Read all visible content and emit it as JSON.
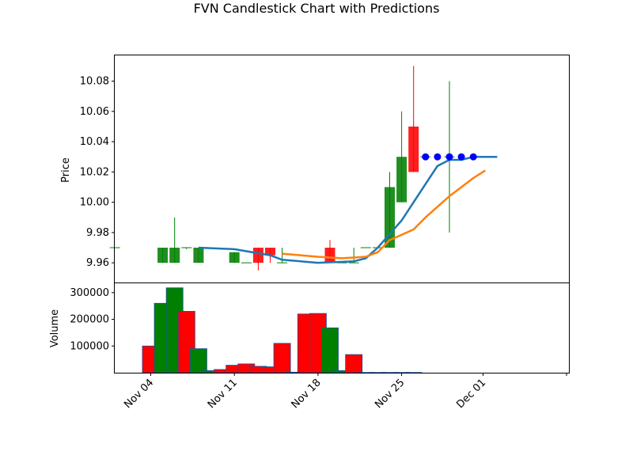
{
  "chart_data": {
    "type": "candlestick",
    "title": "FVN Candlestick Chart with Predictions",
    "price_panel": {
      "ylabel": "Price",
      "ylim": [
        9.947,
        10.097
      ],
      "yticks": [
        "9.96",
        "9.98",
        "10.00",
        "10.02",
        "10.04",
        "10.06",
        "10.08"
      ],
      "candles": [
        {
          "date": "2024-11-01",
          "open": 9.97,
          "high": 9.97,
          "low": 9.97,
          "close": 9.97
        },
        {
          "date": "2024-11-05",
          "open": 9.96,
          "high": 9.97,
          "low": 9.96,
          "close": 9.97
        },
        {
          "date": "2024-11-06",
          "open": 9.96,
          "high": 9.99,
          "low": 9.96,
          "close": 9.97
        },
        {
          "date": "2024-11-07",
          "open": 9.97,
          "high": 9.97,
          "low": 9.969,
          "close": 9.97
        },
        {
          "date": "2024-11-08",
          "open": 9.96,
          "high": 9.97,
          "low": 9.96,
          "close": 9.97
        },
        {
          "date": "2024-11-11",
          "open": 9.96,
          "high": 9.967,
          "low": 9.96,
          "close": 9.967
        },
        {
          "date": "2024-11-12",
          "open": 9.96,
          "high": 9.96,
          "low": 9.96,
          "close": 9.96
        },
        {
          "date": "2024-11-13",
          "open": 9.97,
          "high": 9.97,
          "low": 9.955,
          "close": 9.96
        },
        {
          "date": "2024-11-14",
          "open": 9.97,
          "high": 9.97,
          "low": 9.96,
          "close": 9.965
        },
        {
          "date": "2024-11-15",
          "open": 9.96,
          "high": 9.97,
          "low": 9.96,
          "close": 9.96
        },
        {
          "date": "2024-11-18",
          "open": 9.96,
          "high": 9.96,
          "low": 9.96,
          "close": 9.96
        },
        {
          "date": "2024-11-19",
          "open": 9.97,
          "high": 9.975,
          "low": 9.96,
          "close": 9.96
        },
        {
          "date": "2024-11-20",
          "open": 9.96,
          "high": 9.96,
          "low": 9.96,
          "close": 9.96
        },
        {
          "date": "2024-11-21",
          "open": 9.96,
          "high": 9.97,
          "low": 9.96,
          "close": 9.96
        },
        {
          "date": "2024-11-22",
          "open": 9.97,
          "high": 9.97,
          "low": 9.97,
          "close": 9.97
        },
        {
          "date": "2024-11-23",
          "open": 9.97,
          "high": 9.97,
          "low": 9.97,
          "close": 9.97
        },
        {
          "date": "2024-11-24",
          "open": 9.97,
          "high": 10.02,
          "low": 9.97,
          "close": 10.01
        },
        {
          "date": "2024-11-25",
          "open": 10.0,
          "high": 10.06,
          "low": 10.0,
          "close": 10.03
        },
        {
          "date": "2024-11-26",
          "open": 10.05,
          "high": 10.09,
          "low": 10.02,
          "close": 10.02
        },
        {
          "date": "2024-11-27",
          "open": 10.03,
          "high": 10.03,
          "low": 10.03,
          "close": 10.03
        },
        {
          "date": "2024-11-29",
          "open": 10.03,
          "high": 10.08,
          "low": 9.98,
          "close": 10.03
        }
      ],
      "sma_short": {
        "color": "#1f77b4",
        "points": [
          [
            "2024-11-08",
            9.97
          ],
          [
            "2024-11-11",
            9.969
          ],
          [
            "2024-11-14",
            9.965
          ],
          [
            "2024-11-15",
            9.962
          ],
          [
            "2024-11-18",
            9.96
          ],
          [
            "2024-11-21",
            9.961
          ],
          [
            "2024-11-22",
            9.963
          ],
          [
            "2024-11-23",
            9.97
          ],
          [
            "2024-11-25",
            9.988
          ],
          [
            "2024-11-26",
            10.0
          ],
          [
            "2024-11-27",
            10.012
          ],
          [
            "2024-11-28",
            10.024
          ],
          [
            "2024-11-29",
            10.028
          ],
          [
            "2024-11-30",
            10.028
          ],
          [
            "2024-12-01",
            10.03
          ],
          [
            "2024-12-03",
            10.03
          ]
        ]
      },
      "sma_long": {
        "color": "#ff7f0e",
        "points": [
          [
            "2024-11-15",
            9.966
          ],
          [
            "2024-11-18",
            9.964
          ],
          [
            "2024-11-20",
            9.963
          ],
          [
            "2024-11-22",
            9.964
          ],
          [
            "2024-11-23",
            9.967
          ],
          [
            "2024-11-24",
            9.975
          ],
          [
            "2024-11-26",
            9.982
          ],
          [
            "2024-11-27",
            9.99
          ],
          [
            "2024-11-28",
            9.997
          ],
          [
            "2024-11-29",
            10.004
          ],
          [
            "2024-11-30",
            10.01
          ],
          [
            "2024-12-01",
            10.016
          ],
          [
            "2024-12-02",
            10.021
          ]
        ]
      },
      "predictions": {
        "color": "#0000ff",
        "points": [
          [
            "2024-11-27",
            10.03
          ],
          [
            "2024-11-28",
            10.03
          ],
          [
            "2024-11-29",
            10.03
          ],
          [
            "2024-11-30",
            10.03
          ],
          [
            "2024-12-01",
            10.03
          ]
        ]
      }
    },
    "volume_panel": {
      "ylabel": "Volume",
      "ylim": [
        0,
        335000
      ],
      "yticks": [
        "100000",
        "200000",
        "300000"
      ],
      "bars": [
        {
          "date": "2024-11-04",
          "value": 100000,
          "direction": "down"
        },
        {
          "date": "2024-11-05",
          "value": 260000,
          "direction": "up"
        },
        {
          "date": "2024-11-06",
          "value": 318000,
          "direction": "up"
        },
        {
          "date": "2024-11-07",
          "value": 230000,
          "direction": "down"
        },
        {
          "date": "2024-11-08",
          "value": 90000,
          "direction": "up"
        },
        {
          "date": "2024-11-09",
          "value": 8000,
          "direction": "up"
        },
        {
          "date": "2024-11-10",
          "value": 12000,
          "direction": "down"
        },
        {
          "date": "2024-11-11",
          "value": 28000,
          "direction": "down"
        },
        {
          "date": "2024-11-12",
          "value": 33000,
          "direction": "down"
        },
        {
          "date": "2024-11-13",
          "value": 24000,
          "direction": "down"
        },
        {
          "date": "2024-11-14",
          "value": 22000,
          "direction": "down"
        },
        {
          "date": "2024-11-15",
          "value": 110000,
          "direction": "down"
        },
        {
          "date": "2024-11-16",
          "value": 2000,
          "direction": "up"
        },
        {
          "date": "2024-11-17",
          "value": 220000,
          "direction": "down"
        },
        {
          "date": "2024-11-18",
          "value": 222000,
          "direction": "down"
        },
        {
          "date": "2024-11-19",
          "value": 168000,
          "direction": "up"
        },
        {
          "date": "2024-11-20",
          "value": 8000,
          "direction": "up"
        },
        {
          "date": "2024-11-21",
          "value": 68000,
          "direction": "down"
        },
        {
          "date": "2024-11-22",
          "value": 1000,
          "direction": "up"
        },
        {
          "date": "2024-11-23",
          "value": 1000,
          "direction": "up"
        },
        {
          "date": "2024-11-24",
          "value": 1000,
          "direction": "up"
        },
        {
          "date": "2024-11-25",
          "value": 1000,
          "direction": "up"
        },
        {
          "date": "2024-11-26",
          "value": 1000,
          "direction": "up"
        }
      ]
    },
    "xticks": [
      "Nov 04",
      "Nov 11",
      "Nov 18",
      "Nov 25",
      "Dec 01"
    ],
    "colors": {
      "up": "#008000",
      "down": "#ff0000",
      "edge": "#1f4f9f"
    },
    "grid": false
  }
}
